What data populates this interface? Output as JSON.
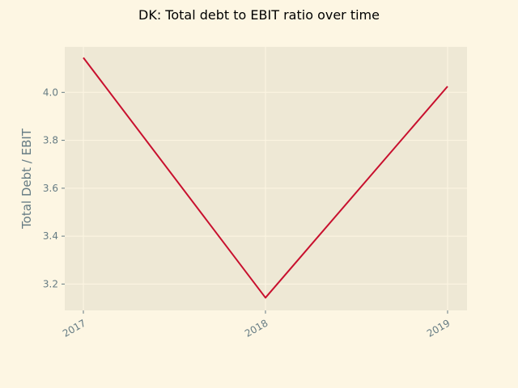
{
  "chart_data": {
    "type": "line",
    "title": "DK: Total debt to EBIT ratio over time",
    "xlabel": "",
    "ylabel": "Total Debt / EBIT",
    "categories": [
      "2017",
      "2018",
      "2019"
    ],
    "series": [
      {
        "values": [
          4.145,
          3.143,
          4.025
        ]
      }
    ],
    "ylim": [
      3.09,
      4.19
    ],
    "yticks": [
      "3.2",
      "3.4",
      "3.6",
      "3.8",
      "4.0"
    ],
    "grid": true,
    "legend": "none"
  },
  "colors": {
    "figure_background": "#fdf6e3",
    "plot_background": "#eee8d5",
    "grid": "#fdf6e3",
    "line": "#c8102e",
    "text": "#657b83",
    "title": "#000000"
  }
}
